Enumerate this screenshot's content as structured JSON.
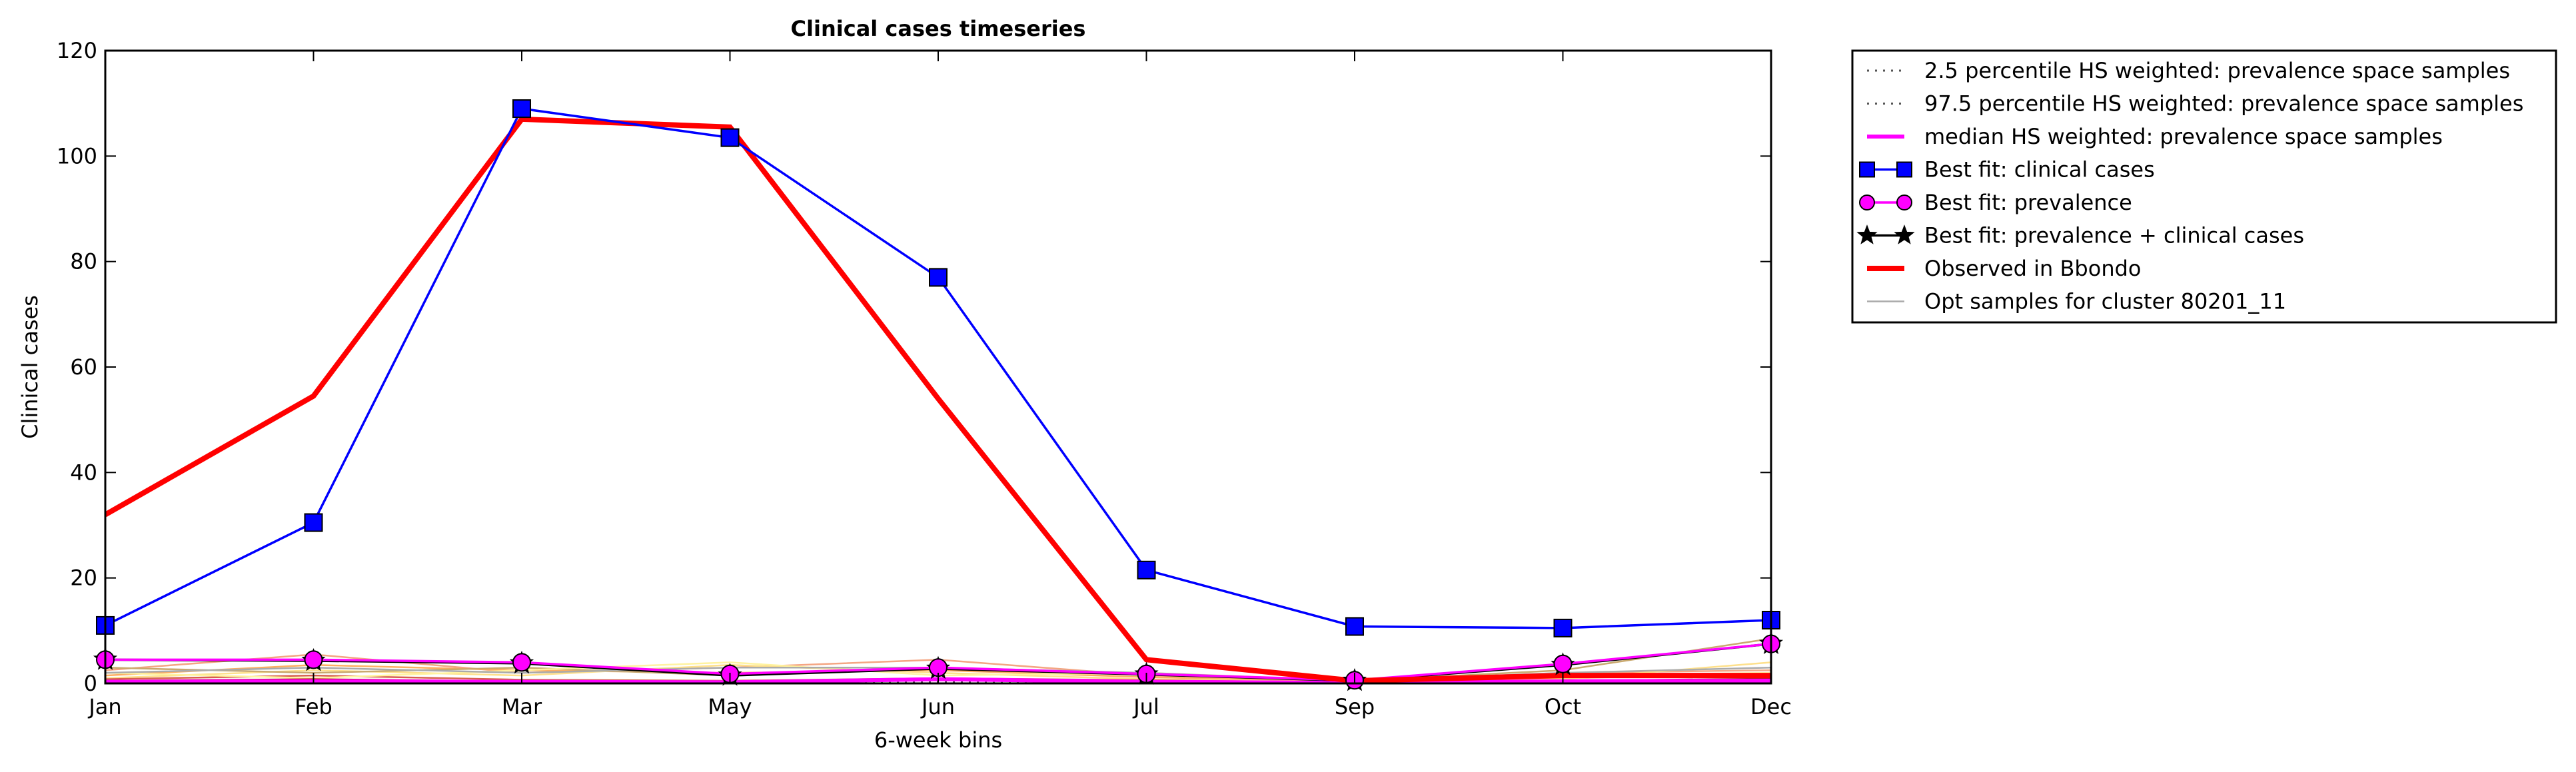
{
  "chart_data": {
    "type": "line",
    "title": "Clinical cases timeseries",
    "xlabel": "6-week bins",
    "ylabel": "Clinical cases",
    "categories": [
      "Jan",
      "Feb",
      "Mar",
      "May",
      "Jun",
      "Jul",
      "Sep",
      "Oct",
      "Dec"
    ],
    "ylim": [
      0,
      120
    ],
    "yticks": [
      0,
      20,
      40,
      60,
      80,
      100,
      120
    ],
    "grid": false,
    "legend_position": "outside-top-right",
    "series": [
      {
        "name": "2.5 percentile HS weighted: prevalence space samples",
        "style": "dotted",
        "color": "#555555",
        "values": [
          0.1,
          0.1,
          0.1,
          0.1,
          0.1,
          0.1,
          0.1,
          0.1,
          0.1
        ]
      },
      {
        "name": "97.5 percentile HS weighted: prevalence space samples",
        "style": "dotted",
        "color": "#555555",
        "values": [
          0.4,
          0.5,
          0.4,
          0.3,
          0.4,
          0.3,
          0.2,
          0.3,
          0.4
        ]
      },
      {
        "name": "median HS weighted: prevalence space samples",
        "style": "solid",
        "color": "#ff00ff",
        "values": [
          0.3,
          0.4,
          0.3,
          0.2,
          0.8,
          0.3,
          0.1,
          0.4,
          0.5
        ]
      },
      {
        "name": "Best fit: clinical cases",
        "style": "solid-marker-square",
        "color": "#0000ff",
        "values": [
          11,
          30.5,
          109,
          103.5,
          77,
          21.5,
          10.8,
          10.5,
          12
        ]
      },
      {
        "name": "Best fit: prevalence",
        "style": "solid-marker-circle",
        "color": "#ff00ff",
        "values": [
          4.5,
          4.5,
          4,
          1.8,
          3,
          1.8,
          0.6,
          3.7,
          7.5
        ]
      },
      {
        "name": "Best fit: prevalence + clinical cases",
        "style": "solid-marker-star",
        "color": "#000000",
        "values": [
          4.5,
          4.3,
          3.8,
          1.5,
          2.8,
          1.7,
          0.5,
          3.5,
          7.5
        ]
      },
      {
        "name": "Observed in Bbondo",
        "style": "thick-solid",
        "color": "#ff0000",
        "values": [
          32,
          54.5,
          107,
          105.5,
          54,
          4.5,
          0.5,
          1.5,
          1.5
        ]
      },
      {
        "name": "Opt samples for cluster 80201_11",
        "style": "thin-solid",
        "color": "#aaaaaa",
        "values": [
          2,
          3,
          2,
          3,
          3,
          2,
          0.5,
          2,
          3
        ]
      }
    ],
    "opt_samples": [
      {
        "color": "#f4a582",
        "values": [
          2.5,
          5.5,
          2.0,
          3.0,
          4.5,
          1.5,
          0.4,
          2.0,
          2.5
        ]
      },
      {
        "color": "#fdae61",
        "values": [
          1.5,
          3.5,
          2.5,
          2.0,
          2.5,
          1.2,
          0.3,
          1.0,
          1.8
        ]
      },
      {
        "color": "#fee08b",
        "values": [
          1.0,
          2.5,
          1.5,
          3.5,
          2.0,
          0.8,
          0.2,
          0.8,
          4.0
        ]
      },
      {
        "color": "#c9a96e",
        "values": [
          3.0,
          2.0,
          3.0,
          1.5,
          3.0,
          1.8,
          0.5,
          2.5,
          8.5
        ]
      },
      {
        "color": "#d6604d",
        "values": [
          0.8,
          1.5,
          0.7,
          0.5,
          1.0,
          0.6,
          0.2,
          1.8,
          1.2
        ]
      },
      {
        "color": "#fff3a0",
        "values": [
          2.0,
          1.0,
          2.5,
          4.0,
          1.5,
          2.0,
          0.6,
          1.5,
          2.0
        ]
      },
      {
        "color": "#b2182b",
        "values": [
          0.5,
          0.8,
          0.4,
          0.3,
          0.6,
          0.3,
          0.1,
          0.5,
          0.9
        ]
      }
    ]
  }
}
